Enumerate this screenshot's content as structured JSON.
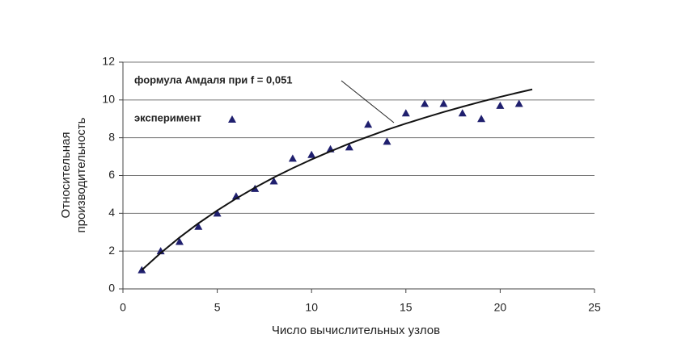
{
  "chart_data": {
    "type": "scatter",
    "x_label": "Число вычислительных узлов",
    "y_label": [
      "Относительная",
      "производительность"
    ],
    "xlim": [
      0,
      25
    ],
    "xticks": [
      0,
      5,
      10,
      15,
      20,
      25
    ],
    "ylim": [
      0,
      12
    ],
    "yticks": [
      0,
      2,
      4,
      6,
      8,
      10,
      12
    ],
    "grid": true,
    "series": [
      {
        "name": "эксперимент",
        "kind": "marker",
        "color": "#1f1f6e",
        "x": [
          1,
          2,
          3,
          4,
          5,
          6,
          7,
          8,
          9,
          10,
          11,
          12,
          13,
          14,
          15,
          16,
          17,
          18,
          19,
          20,
          21
        ],
        "values": [
          1.0,
          2.0,
          2.5,
          3.3,
          4.0,
          4.9,
          5.3,
          5.7,
          6.9,
          7.1,
          7.4,
          7.5,
          8.7,
          7.8,
          9.3,
          9.8,
          9.8,
          9.3,
          9.0,
          9.7,
          9.8
        ]
      },
      {
        "name": "формула Амдаля при f = 0,051",
        "kind": "line",
        "color": "#111111",
        "x": [
          1,
          2,
          3,
          4,
          5,
          6,
          7,
          8,
          9,
          10,
          11,
          12,
          13,
          14,
          15,
          16,
          17,
          18,
          19,
          20,
          21,
          21.7
        ],
        "values": [
          1,
          1.9,
          2.72,
          3.47,
          4.15,
          4.78,
          5.36,
          5.9,
          6.39,
          6.85,
          7.28,
          7.69,
          8.06,
          8.42,
          8.75,
          9.06,
          9.36,
          9.64,
          9.91,
          10.16,
          10.4,
          10.56
        ]
      }
    ]
  }
}
